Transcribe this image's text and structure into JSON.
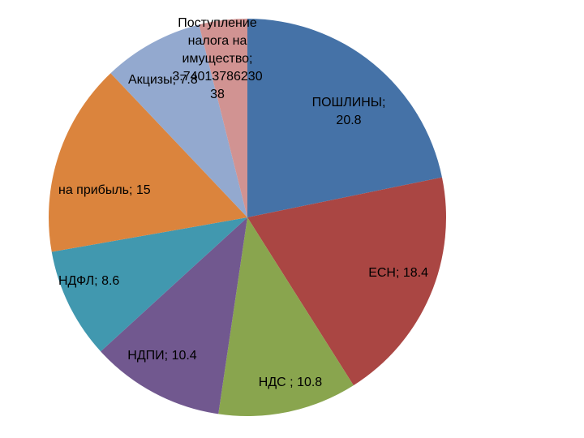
{
  "chart_data": {
    "type": "pie",
    "title": "",
    "colors": [
      "#4572A7",
      "#AA4643",
      "#89A54E",
      "#71588F",
      "#4198AF",
      "#DB843D",
      "#93A9CF",
      "#D19392"
    ],
    "slices": [
      {
        "label": "ПОШЛИНЫ",
        "value": 20.8,
        "text_lines": [
          "ПОШЛИНЫ;",
          "20.8"
        ]
      },
      {
        "label": "ЕСН",
        "value": 18.4,
        "text_lines": [
          "ЕСН; 18.4"
        ]
      },
      {
        "label": "НДС",
        "value": 10.8,
        "text_lines": [
          "НДС ; 10.8"
        ]
      },
      {
        "label": "НДПИ",
        "value": 10.4,
        "text_lines": [
          "НДПИ; 10.4"
        ]
      },
      {
        "label": "НДФЛ",
        "value": 8.6,
        "text_lines": [
          "НДФЛ; 8.6"
        ]
      },
      {
        "label": "на прибыль",
        "value": 15,
        "text_lines": [
          "на прибыль; 15"
        ]
      },
      {
        "label": "Акцизы",
        "value": 7.8,
        "text_lines": [
          "Акцизы; 7.8"
        ]
      },
      {
        "label": "Поступление налога на имущество",
        "value": 3.74013786230038,
        "text_lines": [
          "Поступление",
          "налога на",
          "имущество;",
          "3.74013786230",
          "38"
        ]
      }
    ]
  }
}
